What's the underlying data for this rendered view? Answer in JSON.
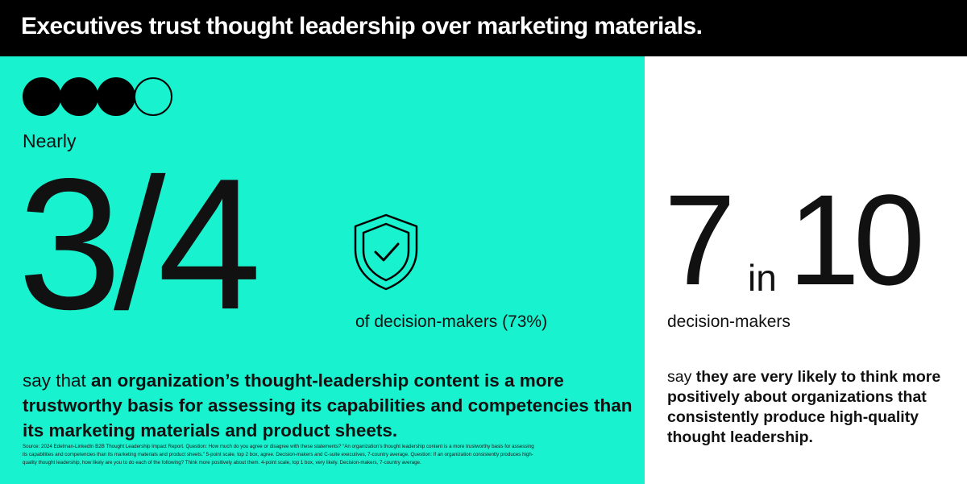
{
  "header": {
    "title": "Executives trust thought leadership over marketing materials."
  },
  "colors": {
    "accent": "#19f2cf",
    "header_bg": "#000000",
    "text": "#111111"
  },
  "left": {
    "progress": {
      "filled": 3,
      "total": 4
    },
    "qualifier": "Nearly",
    "stat": "3/4",
    "icon": "shield-check-icon",
    "stat_label": "of decision-makers (73%)",
    "statement_lead": "say that ",
    "statement_bold": "an organization’s thought-leadership content is a more trustworthy basis for assessing its capabilities and competencies than its marketing materials and product sheets.",
    "source": "Source: 2024 Edelman-LinkedIn B2B Thought Leadership Impact Report. Question: How much do you agree or disagree with these statements? “An organization’s thought leadership content is a more trustworthy basis for assessing its capabilities and competencies than its marketing materials and product sheets.” 5-point scale, top 2 box, agree. Decision-makers and C-suite executives, 7-country average. Question: If an organization consistently produces high-quality thought leadership, how likely are you to do each of the following? Think more positively about them. 4-point scale, top 1 box, very likely. Decision-makers, 7-country average."
  },
  "right": {
    "stat_num": "7",
    "stat_in": "in",
    "stat_den": "10",
    "stat_label": "decision-makers",
    "statement_lead": "say ",
    "statement_bold": "they are very likely to think more positively about organizations that consistently produce high-quality thought leadership."
  }
}
